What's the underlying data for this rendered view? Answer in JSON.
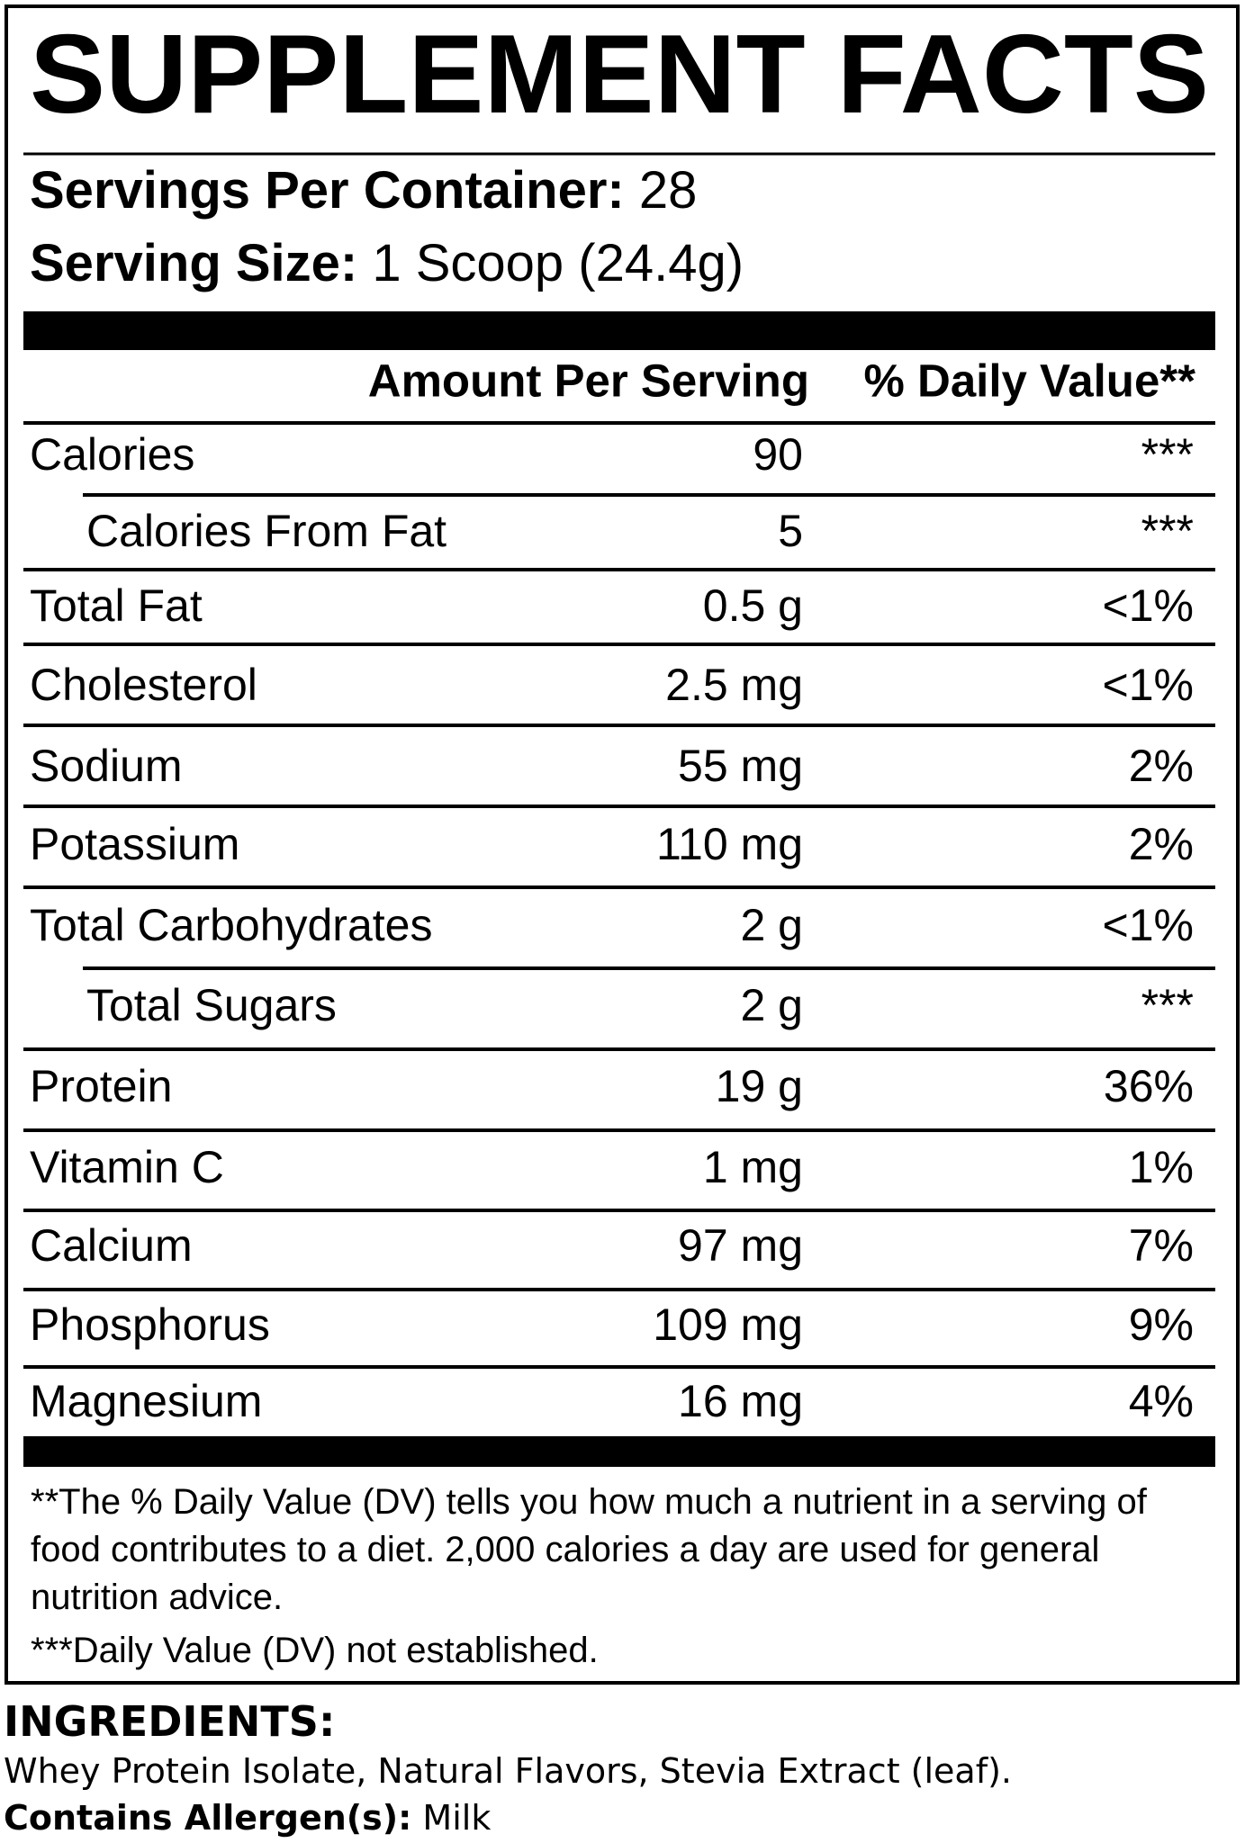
{
  "title": "SUPPLEMENT FACTS",
  "servings": {
    "label": "Servings Per Container:",
    "value": "28"
  },
  "serving_size": {
    "label": "Serving Size:",
    "value": "1 Scoop (24.4g)"
  },
  "table": {
    "header": {
      "amount": "Amount Per Serving",
      "dv": "% Daily Value**"
    },
    "rows": [
      {
        "name": "Calories",
        "amount": "90",
        "dv": "***"
      },
      {
        "name": "Calories From Fat",
        "amount": "5",
        "dv": "***",
        "indented": true
      },
      {
        "name": "Total Fat",
        "amount": "0.5 g",
        "dv": "<1%"
      },
      {
        "name": "Cholesterol",
        "amount": "2.5 mg",
        "dv": "<1%"
      },
      {
        "name": "Sodium",
        "amount": "55 mg",
        "dv": "2%"
      },
      {
        "name": "Potassium",
        "amount": "110 mg",
        "dv": "2%"
      },
      {
        "name": "Total Carbohydrates",
        "amount": "2 g",
        "dv": "<1%"
      },
      {
        "name": "Total Sugars",
        "amount": "2 g",
        "dv": "***",
        "indented": true
      },
      {
        "name": "Protein",
        "amount": "19 g",
        "dv": "36%"
      },
      {
        "name": "Vitamin C",
        "amount": "1 mg",
        "dv": "1%"
      },
      {
        "name": "Calcium",
        "amount": "97 mg",
        "dv": "7%"
      },
      {
        "name": "Phosphorus",
        "amount": "109 mg",
        "dv": "9%"
      },
      {
        "name": "Magnesium",
        "amount": "16 mg",
        "dv": "4%"
      }
    ]
  },
  "footnotes": [
    "**The % Daily Value (DV) tells you how much a nutrient in a serving of food contributes to a diet. 2,000 calories a day are used for general nutrition advice.",
    "***Daily Value (DV) not established."
  ],
  "ingredients": {
    "heading": "INGREDIENTS:",
    "text": "Whey Protein Isolate, Natural Flavors, Stevia Extract (leaf)."
  },
  "allergens": {
    "label": "Contains Allergen(s):",
    "value": "Milk"
  }
}
